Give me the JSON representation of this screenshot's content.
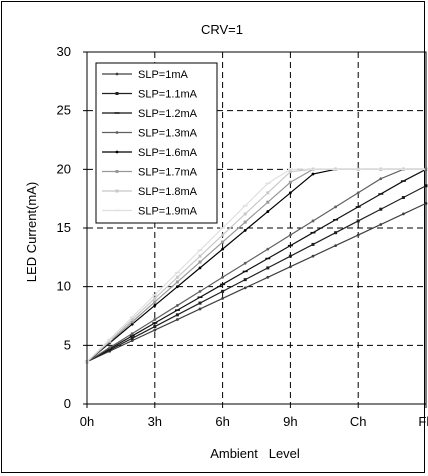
{
  "chart_data": {
    "type": "line",
    "title": "CRV=1",
    "xlabel": "Ambient   Level",
    "ylabel": "LED Current(mA)",
    "x": [
      0,
      1,
      2,
      3,
      4,
      5,
      6,
      7,
      8,
      9,
      10,
      11,
      12,
      13,
      14,
      15
    ],
    "x_ticks": [
      {
        "value": 0,
        "label": "0h"
      },
      {
        "value": 3,
        "label": "3h"
      },
      {
        "value": 6,
        "label": "6h"
      },
      {
        "value": 9,
        "label": "9h"
      },
      {
        "value": 12,
        "label": "Ch"
      },
      {
        "value": 15,
        "label": "Fh"
      }
    ],
    "y_ticks": [
      0,
      5,
      10,
      15,
      20,
      25,
      30
    ],
    "xlim": [
      0,
      15
    ],
    "ylim": [
      0,
      30
    ],
    "grid": true,
    "legend_position": "top-left",
    "series": [
      {
        "name": "SLP=1mA",
        "color": "#404040",
        "marker": "dot",
        "values": [
          3.6,
          4.5,
          5.4,
          6.3,
          7.2,
          8.1,
          9.0,
          9.9,
          10.8,
          11.7,
          12.6,
          13.5,
          14.4,
          15.3,
          16.2,
          17.1
        ]
      },
      {
        "name": "SLP=1.1mA",
        "color": "#202020",
        "marker": "square",
        "values": [
          3.6,
          4.6,
          5.6,
          6.6,
          7.6,
          8.6,
          9.6,
          10.6,
          11.6,
          12.6,
          13.6,
          14.6,
          15.6,
          16.6,
          17.6,
          18.6
        ]
      },
      {
        "name": "SLP=1.2mA",
        "color": "#101010",
        "marker": "dash",
        "values": [
          3.6,
          4.7,
          5.8,
          6.9,
          8.0,
          9.1,
          10.2,
          11.3,
          12.4,
          13.5,
          14.6,
          15.7,
          16.8,
          17.9,
          19.0,
          20.0
        ]
      },
      {
        "name": "SLP=1.3mA",
        "color": "#606060",
        "marker": "dot",
        "values": [
          3.6,
          4.8,
          6.0,
          7.2,
          8.4,
          9.6,
          10.8,
          12.0,
          13.2,
          14.4,
          15.6,
          16.8,
          18.0,
          19.2,
          20.0,
          20.0
        ]
      },
      {
        "name": "SLP=1.6mA",
        "color": "#000000",
        "marker": "dot",
        "values": [
          3.6,
          5.2,
          6.8,
          8.4,
          10.0,
          11.6,
          13.2,
          14.8,
          16.4,
          18.0,
          19.6,
          20.0,
          20.0,
          20.0,
          20.0,
          20.0
        ]
      },
      {
        "name": "SLP=1.7mA",
        "color": "#999999",
        "marker": "square",
        "values": [
          3.6,
          5.3,
          7.0,
          8.7,
          10.4,
          12.1,
          13.8,
          15.5,
          17.2,
          18.9,
          20.0,
          20.0,
          20.0,
          20.0,
          20.0,
          20.0
        ]
      },
      {
        "name": "SLP=1.8mA",
        "color": "#c8c8c8",
        "marker": "square",
        "values": [
          3.6,
          5.4,
          7.2,
          9.0,
          10.8,
          12.6,
          14.4,
          16.2,
          18.0,
          19.8,
          20.0,
          20.0,
          20.0,
          20.0,
          20.0,
          20.0
        ]
      },
      {
        "name": "SLP=1.9mA",
        "color": "#e0e0e0",
        "marker": "dash",
        "values": [
          3.6,
          5.5,
          7.4,
          9.3,
          11.2,
          13.1,
          15.0,
          16.9,
          18.8,
          20.0,
          20.0,
          20.0,
          20.0,
          20.0,
          20.0,
          20.0
        ]
      }
    ]
  }
}
